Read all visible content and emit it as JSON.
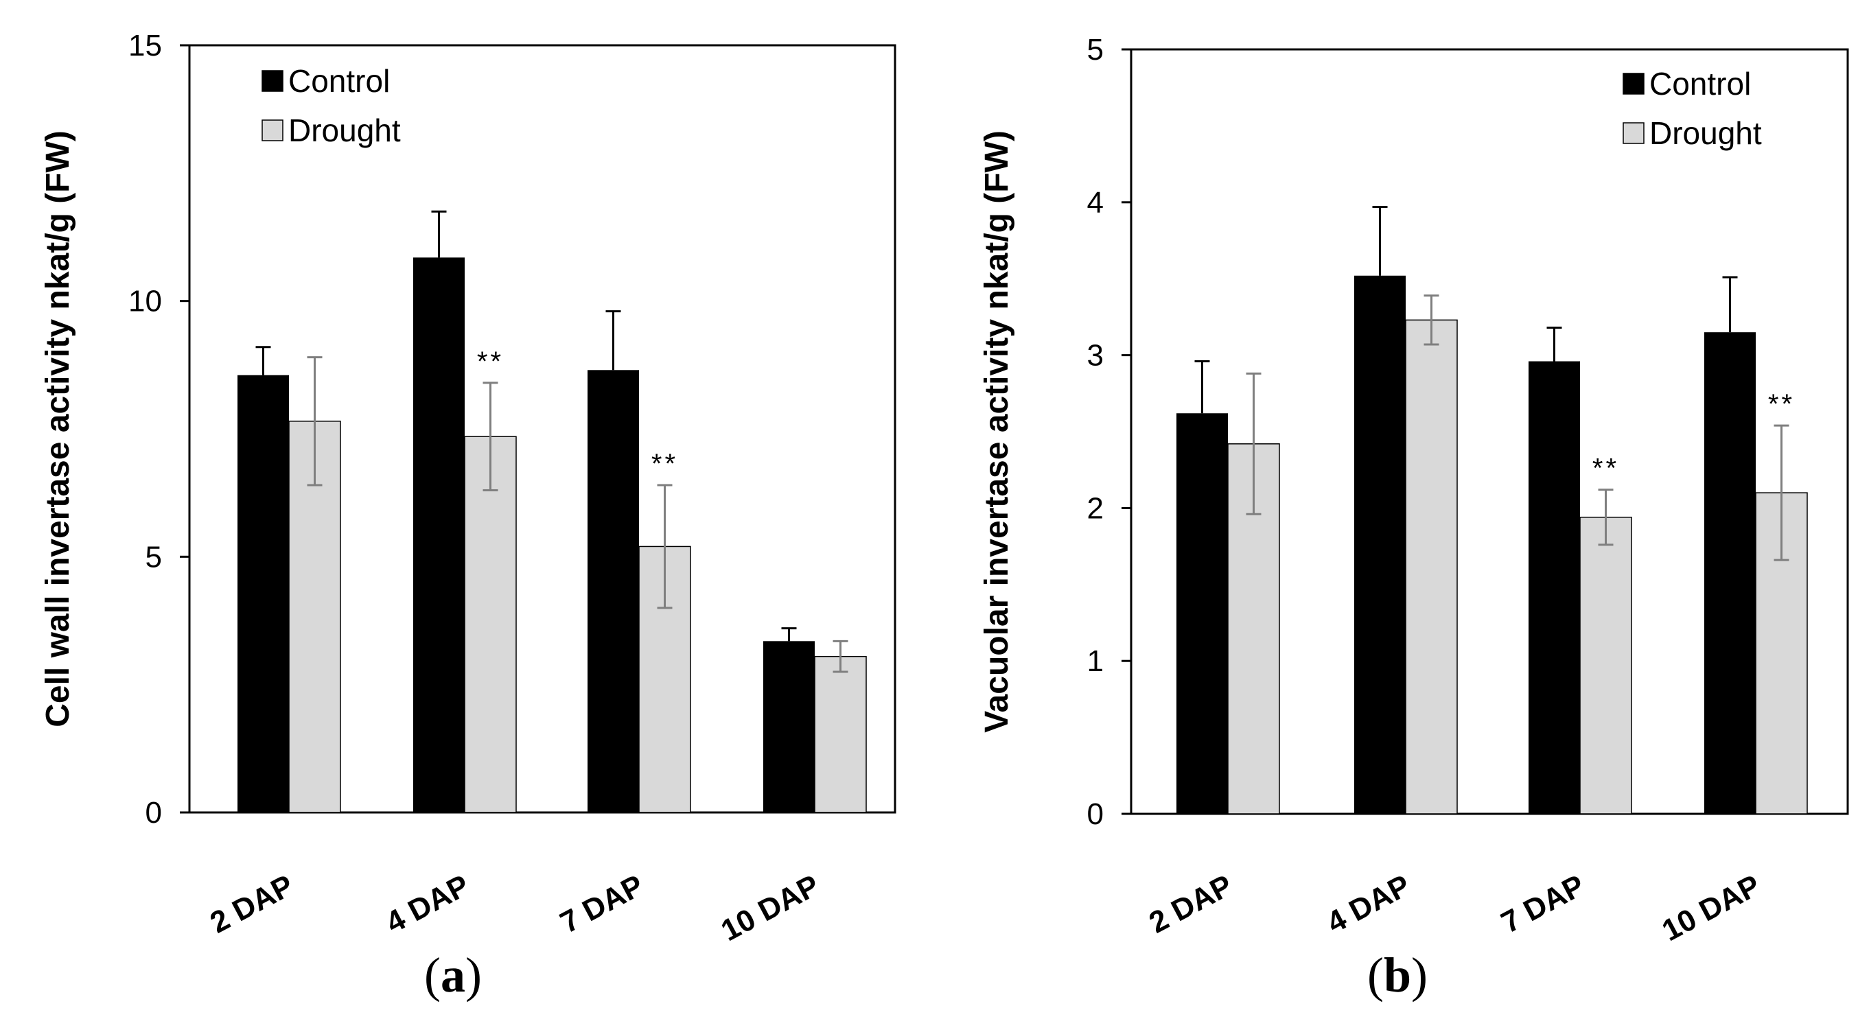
{
  "chart_data": [
    {
      "type": "bar",
      "panel_label": "a",
      "ylabel": "Cell wall invertase activity nkat/g (FW)",
      "xlabel": "",
      "ylim": [
        0,
        15
      ],
      "yticks": [
        0,
        5,
        10,
        15
      ],
      "categories": [
        "2 DAP",
        "4 DAP",
        "7 DAP",
        "10 DAP"
      ],
      "series": [
        {
          "name": "Control",
          "values": [
            8.55,
            10.85,
            8.65,
            3.35
          ],
          "errors": [
            0.55,
            0.9,
            1.15,
            0.25
          ]
        },
        {
          "name": "Drought",
          "values": [
            7.65,
            7.35,
            5.2,
            3.05
          ],
          "errors": [
            1.25,
            1.05,
            1.2,
            0.3
          ]
        }
      ],
      "significance": [
        {
          "category": "4 DAP",
          "series": "Drought",
          "label": "**"
        },
        {
          "category": "7 DAP",
          "series": "Drought",
          "label": "**"
        }
      ],
      "legend": {
        "position": "top-left"
      },
      "grid": false
    },
    {
      "type": "bar",
      "panel_label": "b",
      "ylabel": "Vacuolar invertase activity nkat/g (FW)",
      "xlabel": "",
      "ylim": [
        0,
        5
      ],
      "yticks": [
        0,
        1,
        2,
        3,
        4,
        5
      ],
      "categories": [
        "2 DAP",
        "4 DAP",
        "7 DAP",
        "10 DAP"
      ],
      "series": [
        {
          "name": "Control",
          "values": [
            2.62,
            3.52,
            2.96,
            3.15
          ],
          "errors": [
            0.34,
            0.45,
            0.22,
            0.36
          ]
        },
        {
          "name": "Drought",
          "values": [
            2.42,
            3.23,
            1.94,
            2.1
          ],
          "errors": [
            0.46,
            0.16,
            0.18,
            0.44
          ]
        }
      ],
      "significance": [
        {
          "category": "7 DAP",
          "series": "Drought",
          "label": "**"
        },
        {
          "category": "10 DAP",
          "series": "Drought",
          "label": "**"
        }
      ],
      "legend": {
        "position": "top-right"
      },
      "grid": false
    }
  ],
  "colors": {
    "control": "#000000",
    "drought": "#d9d9d9",
    "drought_border": "#000000",
    "drought_error": "#7f7f7f",
    "axis": "#000000",
    "background": "#ffffff"
  }
}
